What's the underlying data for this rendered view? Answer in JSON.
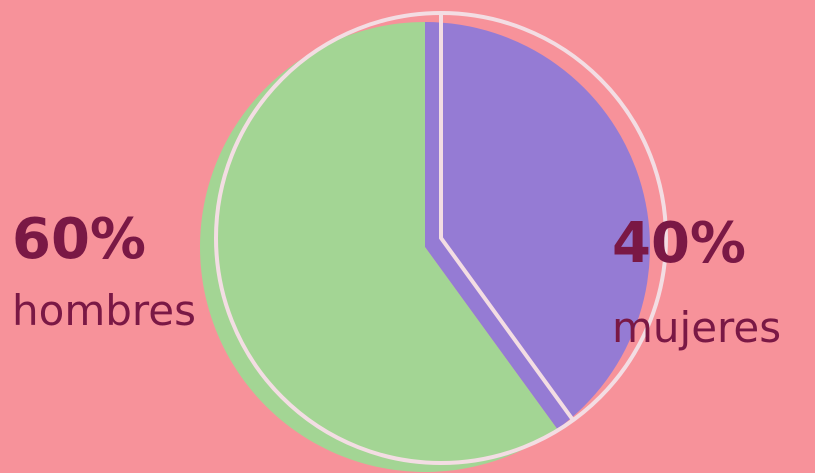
{
  "chart_data": {
    "type": "pie",
    "categories": [
      "hombres",
      "mujeres"
    ],
    "values": [
      60,
      40
    ],
    "value_labels": [
      "60%",
      "40%"
    ],
    "colors": [
      "#a3d594",
      "#957bd4"
    ]
  }
}
